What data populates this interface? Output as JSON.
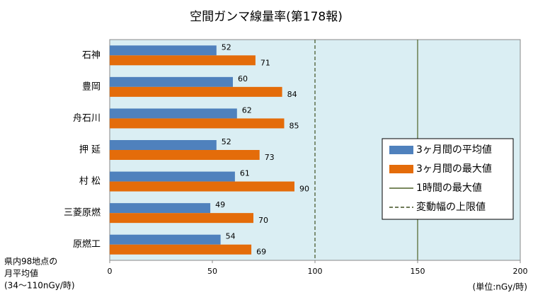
{
  "chart_data": {
    "type": "bar",
    "orientation": "horizontal",
    "title": "空間ガンマ線量率(第178報)",
    "categories": [
      "石神",
      "豊岡",
      "舟石川",
      "押 延",
      "村 松",
      "三菱原燃",
      "原燃工"
    ],
    "series": [
      {
        "name": "3ヶ月間の平均値",
        "color": "#4f81bd",
        "values": [
          52,
          60,
          62,
          52,
          61,
          49,
          54
        ]
      },
      {
        "name": "3ヶ月間の最大値",
        "color": "#e46c0a",
        "values": [
          71,
          84,
          85,
          73,
          90,
          70,
          69
        ]
      }
    ],
    "reference_lines": [
      {
        "name": "1時間の最大値",
        "value": 150,
        "style": "solid",
        "color": "#4f6228"
      },
      {
        "name": "変動幅の上限値",
        "value": 100,
        "style": "dashed",
        "color": "#3f4f20"
      }
    ],
    "xlim": [
      0,
      200
    ],
    "xticks": [
      0,
      50,
      100,
      150,
      200
    ],
    "note": [
      "県内98地点の",
      "月平均値",
      "(34～110nGy/時)"
    ],
    "unit_label": "(単位:nGy/時)",
    "plot_background": "#daeef3",
    "legend": "right"
  }
}
